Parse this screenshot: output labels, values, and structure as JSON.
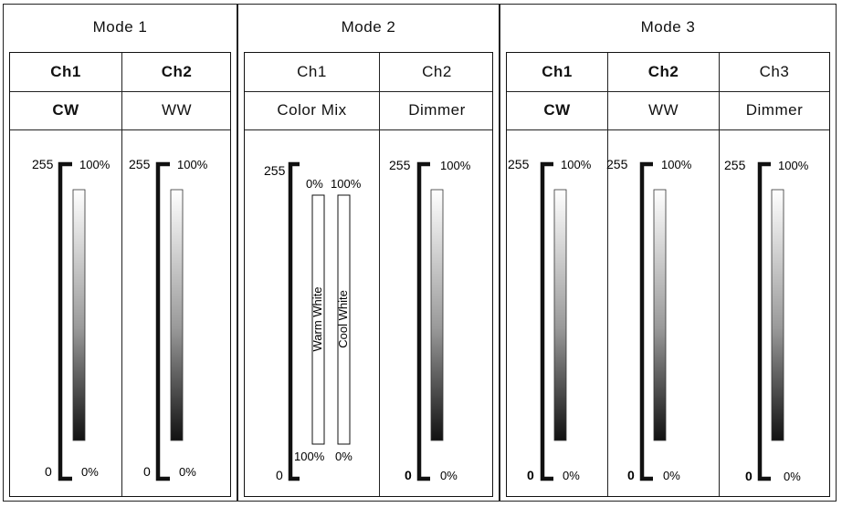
{
  "modes": [
    {
      "title": "Mode 1",
      "channels": [
        {
          "ch": "Ch1",
          "func": "CW",
          "scale_top": "255",
          "scale_bottom": "0",
          "pct_top": "100%",
          "pct_bottom": "0%"
        },
        {
          "ch": "Ch2",
          "func": "WW",
          "scale_top": "255",
          "scale_bottom": "0",
          "pct_top": "100%",
          "pct_bottom": "0%"
        }
      ]
    },
    {
      "title": "Mode 2",
      "channels": [
        {
          "ch": "Ch1",
          "func": "Color Mix",
          "scale_top": "255",
          "scale_bottom": "0",
          "mix": {
            "warm_label": "Warm White",
            "cool_label": "Cool White",
            "warm_top": "0%",
            "cool_top": "100%",
            "warm_bottom": "100%",
            "cool_bottom": "0%"
          }
        },
        {
          "ch": "Ch2",
          "func": "Dimmer",
          "scale_top": "255",
          "scale_bottom": "0",
          "pct_top": "100%",
          "pct_bottom": "0%"
        }
      ]
    },
    {
      "title": "Mode 3",
      "channels": [
        {
          "ch": "Ch1",
          "func": "CW",
          "scale_top": "255",
          "scale_bottom": "0",
          "pct_top": "100%",
          "pct_bottom": "0%"
        },
        {
          "ch": "Ch2",
          "func": "WW",
          "scale_top": "255",
          "scale_bottom": "0",
          "pct_top": "100%",
          "pct_bottom": "0%"
        },
        {
          "ch": "Ch3",
          "func": "Dimmer",
          "scale_top": "255",
          "scale_bottom": "0",
          "pct_top": "100%",
          "pct_bottom": "0%"
        }
      ]
    }
  ]
}
